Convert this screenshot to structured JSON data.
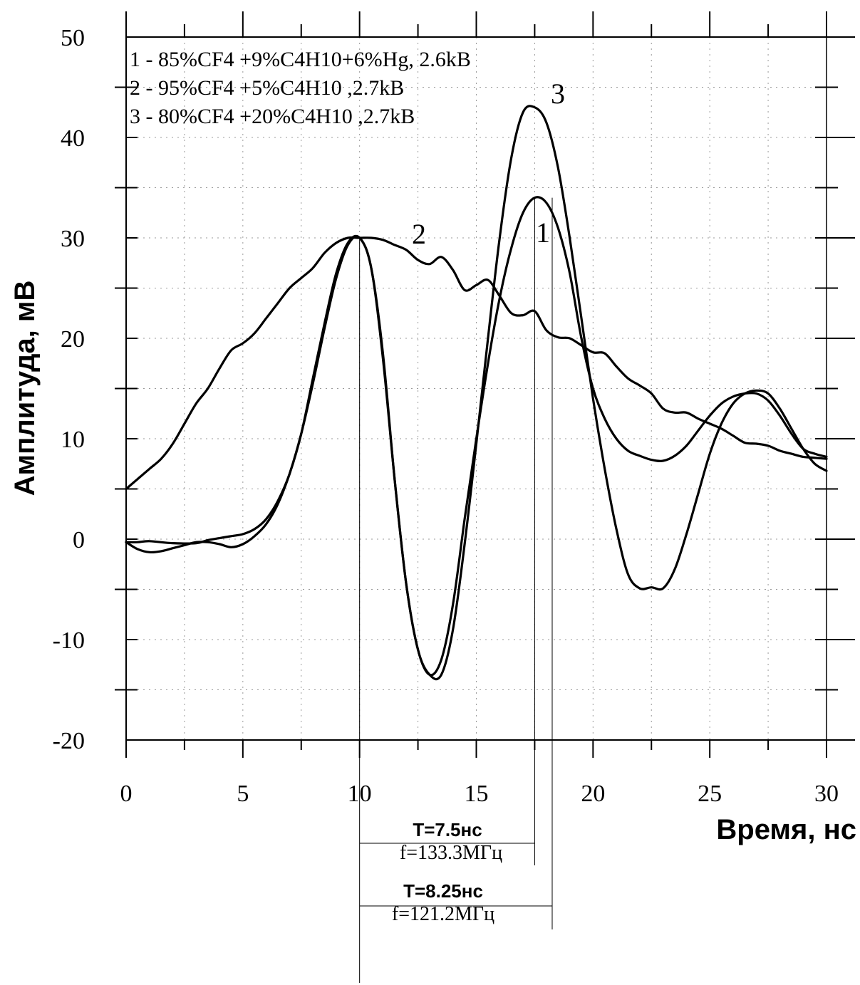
{
  "chart_data": {
    "type": "line",
    "xlabel": "Время, нс",
    "ylabel": "Амплитуда, мВ",
    "xlim": [
      0,
      30
    ],
    "ylim": [
      -20,
      50
    ],
    "x_ticks": [
      0,
      5,
      10,
      15,
      20,
      25,
      30
    ],
    "y_ticks": [
      -20,
      -10,
      0,
      10,
      20,
      30,
      40,
      50
    ],
    "grid": true,
    "legend": [
      "1 - 85%CF4 +9%C4H10+6%Hg, 2.6kB",
      "2 - 95%CF4 +5%C4H10 ,2.7kB",
      "3 - 80%CF4 +20%C4H10 ,2.7kB"
    ],
    "series": [
      {
        "name": "1",
        "x": [
          0,
          0.5,
          1,
          2,
          3,
          3.5,
          4,
          4.5,
          5,
          5.5,
          6,
          6.5,
          7,
          7.5,
          8,
          8.5,
          9,
          9.5,
          10,
          10.5,
          11,
          11.5,
          12,
          12.5,
          13,
          13.5,
          14,
          14.5,
          15,
          15.5,
          16,
          16.5,
          17,
          17.5,
          18,
          18.5,
          19,
          19.5,
          20,
          20.5,
          21,
          21.5,
          22,
          22.5,
          23,
          23.5,
          24,
          24.5,
          25,
          25.5,
          26,
          26.5,
          27,
          27.5,
          28,
          28.5,
          29,
          29.5,
          30
        ],
        "y": [
          -0.3,
          -0.3,
          -0.2,
          -0.4,
          -0.4,
          -0.1,
          0.1,
          0.3,
          0.5,
          1.0,
          2.0,
          3.8,
          6.5,
          10.5,
          16.0,
          21.5,
          26.5,
          29.5,
          30.0,
          27.0,
          18.0,
          6.0,
          -4.5,
          -11.0,
          -13.5,
          -12.0,
          -6.5,
          2.0,
          10.0,
          17.5,
          24.0,
          29.0,
          32.5,
          34.0,
          33.5,
          31.0,
          26.5,
          20.0,
          15.0,
          12.0,
          10.0,
          8.8,
          8.3,
          7.9,
          7.8,
          8.3,
          9.3,
          10.8,
          12.3,
          13.5,
          14.2,
          14.5,
          14.5,
          13.8,
          12.3,
          10.5,
          9.0,
          8.5,
          8.2
        ]
      },
      {
        "name": "2",
        "x": [
          0,
          0.5,
          1,
          1.5,
          2,
          2.5,
          3,
          3.5,
          4,
          4.5,
          5,
          5.5,
          6,
          6.5,
          7,
          7.5,
          8,
          8.5,
          9,
          9.5,
          10,
          10.5,
          11,
          11.5,
          12,
          12.5,
          13,
          13.5,
          14,
          14.5,
          15,
          15.5,
          16,
          16.5,
          17,
          17.5,
          18,
          18.5,
          19,
          19.5,
          20,
          20.5,
          21,
          21.5,
          22,
          22.5,
          23,
          23.5,
          24,
          24.5,
          25,
          25.5,
          26,
          26.5,
          27,
          27.5,
          28,
          28.5,
          29,
          29.5,
          30
        ],
        "y": [
          5.0,
          6.0,
          7.0,
          8.0,
          9.5,
          11.5,
          13.5,
          15.0,
          17.0,
          18.8,
          19.5,
          20.5,
          22.0,
          23.5,
          25.0,
          26.0,
          27.0,
          28.5,
          29.5,
          30.0,
          30.0,
          30.0,
          29.8,
          29.3,
          28.8,
          27.8,
          27.4,
          28.1,
          26.8,
          24.8,
          25.3,
          25.8,
          24.2,
          22.5,
          22.3,
          22.7,
          20.8,
          20.1,
          20.0,
          19.3,
          18.6,
          18.5,
          17.2,
          16.0,
          15.3,
          14.5,
          13.0,
          12.6,
          12.6,
          12.0,
          11.5,
          11.0,
          10.3,
          9.6,
          9.5,
          9.3,
          8.8,
          8.5,
          8.2,
          8.1,
          8.0
        ]
      },
      {
        "name": "3",
        "x": [
          0,
          0.5,
          1,
          1.5,
          2,
          2.5,
          3,
          3.5,
          4,
          4.5,
          5,
          5.5,
          6,
          6.5,
          7,
          7.5,
          8,
          8.5,
          9,
          9.5,
          10,
          10.5,
          11,
          11.5,
          12,
          12.5,
          13,
          13.5,
          14,
          14.5,
          15,
          15.5,
          16,
          16.5,
          17,
          17.5,
          18,
          18.5,
          19,
          19.5,
          20,
          20.5,
          21,
          21.5,
          22,
          22.5,
          23,
          23.5,
          24,
          24.5,
          25,
          25.5,
          26,
          26.5,
          27,
          27.5,
          28,
          28.5,
          29,
          29.5,
          30
        ],
        "y": [
          -0.3,
          -1.0,
          -1.3,
          -1.2,
          -0.9,
          -0.6,
          -0.3,
          -0.3,
          -0.5,
          -0.8,
          -0.5,
          0.3,
          1.5,
          3.5,
          6.5,
          10.5,
          15.5,
          21.0,
          26.0,
          29.3,
          30.0,
          27.0,
          18.5,
          6.0,
          -4.5,
          -11.0,
          -13.5,
          -13.5,
          -9.0,
          -0.5,
          9.5,
          20.0,
          30.0,
          38.0,
          42.5,
          43.0,
          41.5,
          37.0,
          30.0,
          22.0,
          14.0,
          7.0,
          1.0,
          -3.5,
          -4.9,
          -4.8,
          -4.9,
          -3.0,
          0.5,
          4.5,
          8.5,
          11.5,
          13.5,
          14.5,
          14.8,
          14.5,
          13.0,
          11.0,
          9.0,
          7.5,
          6.8
        ]
      }
    ],
    "curve_labels": [
      "1",
      "2",
      "3"
    ],
    "annotations": [
      {
        "period": "T=7.5нс",
        "frequency": "f=133.3МГц",
        "from_x": 10,
        "to_x": 17.5
      },
      {
        "period": "T=8.25нс",
        "frequency": "f=121.2МГц",
        "from_x": 10,
        "to_x": 18.25
      }
    ]
  }
}
